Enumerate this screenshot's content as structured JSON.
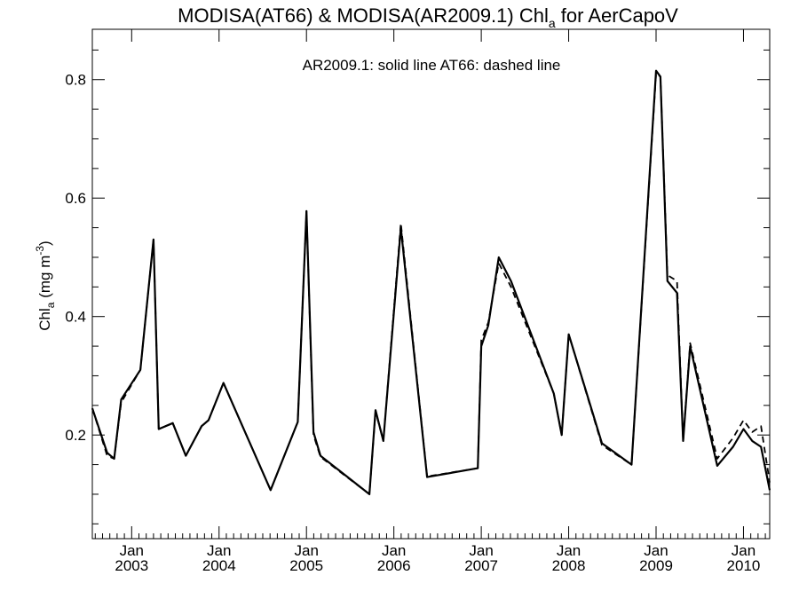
{
  "chart_data": {
    "type": "line",
    "title_main": "MODISA(AT66) & MODISA(AR2009.1)  Chl",
    "title_sub": "a",
    "title_tail": " for AerCapoV",
    "ylabel_main": "Chl",
    "ylabel_sub": "a",
    "ylabel_unit": " (mg m",
    "ylabel_sup": "-3",
    "ylabel_close": ")",
    "annotation": "AR2009.1: solid line   AT66: dashed line",
    "xlim": [
      2002.55,
      2010.3
    ],
    "ylim": [
      0.025,
      0.885
    ],
    "y_ticks": [
      0.2,
      0.4,
      0.6,
      0.8
    ],
    "y_tick_labels": [
      "0.2",
      "0.4",
      "0.6",
      "0.8"
    ],
    "y_minor_step": 0.05,
    "x_ticks": [
      {
        "x": 2003.0,
        "month": "Jan",
        "year": "2003"
      },
      {
        "x": 2004.0,
        "month": "Jan",
        "year": "2004"
      },
      {
        "x": 2005.0,
        "month": "Jan",
        "year": "2005"
      },
      {
        "x": 2006.0,
        "month": "Jan",
        "year": "2006"
      },
      {
        "x": 2007.0,
        "month": "Jan",
        "year": "2007"
      },
      {
        "x": 2008.0,
        "month": "Jan",
        "year": "2008"
      },
      {
        "x": 2009.0,
        "month": "Jan",
        "year": "2009"
      },
      {
        "x": 2010.0,
        "month": "Jan",
        "year": "2010"
      }
    ],
    "series": [
      {
        "name": "AR2009.1",
        "style": "solid",
        "color": "#000000",
        "x": [
          2002.55,
          2002.72,
          2002.8,
          2002.88,
          2003.1,
          2003.25,
          2003.31,
          2003.47,
          2003.62,
          2003.8,
          2003.88,
          2004.05,
          2004.59,
          2004.9,
          2005.0,
          2005.08,
          2005.16,
          2005.72,
          2005.79,
          2005.88,
          2006.08,
          2006.38,
          2006.96,
          2007.0,
          2007.08,
          2007.2,
          2007.34,
          2007.83,
          2007.92,
          2008.0,
          2008.38,
          2008.72,
          2009.0,
          2009.05,
          2009.13,
          2009.24,
          2009.31,
          2009.39,
          2009.7,
          2009.88,
          2010.0,
          2010.1,
          2010.2,
          2010.3
        ],
        "y": [
          0.245,
          0.17,
          0.16,
          0.26,
          0.31,
          0.53,
          0.21,
          0.22,
          0.165,
          0.215,
          0.225,
          0.288,
          0.107,
          0.222,
          0.578,
          0.205,
          0.165,
          0.1,
          0.242,
          0.19,
          0.55,
          0.129,
          0.144,
          0.35,
          0.385,
          0.5,
          0.46,
          0.27,
          0.2,
          0.37,
          0.186,
          0.15,
          0.815,
          0.805,
          0.46,
          0.44,
          0.19,
          0.35,
          0.148,
          0.18,
          0.21,
          0.19,
          0.18,
          0.107
        ]
      },
      {
        "name": "AT66",
        "style": "dashed",
        "color": "#000000",
        "x": [
          2002.55,
          2002.72,
          2002.8,
          2002.88,
          2003.1,
          2003.25,
          2003.31,
          2003.47,
          2003.62,
          2003.8,
          2003.88,
          2004.05,
          2004.59,
          2004.9,
          2005.0,
          2005.08,
          2005.16,
          2005.72,
          2005.79,
          2005.88,
          2006.08,
          2006.38,
          2006.96,
          2007.0,
          2007.08,
          2007.2,
          2007.34,
          2007.83,
          2007.92,
          2008.0,
          2008.38,
          2008.72,
          2009.0,
          2009.05,
          2009.13,
          2009.24,
          2009.31,
          2009.39,
          2009.7,
          2009.88,
          2010.0,
          2010.1,
          2010.2,
          2010.3
        ],
        "y": [
          0.245,
          0.165,
          0.16,
          0.255,
          0.31,
          0.53,
          0.21,
          0.22,
          0.165,
          0.215,
          0.225,
          0.288,
          0.107,
          0.222,
          0.578,
          0.2,
          0.163,
          0.1,
          0.24,
          0.19,
          0.558,
          0.13,
          0.144,
          0.36,
          0.39,
          0.49,
          0.45,
          0.27,
          0.2,
          0.37,
          0.183,
          0.15,
          0.81,
          0.805,
          0.47,
          0.46,
          0.19,
          0.355,
          0.16,
          0.195,
          0.225,
          0.205,
          0.215,
          0.12
        ]
      }
    ]
  }
}
